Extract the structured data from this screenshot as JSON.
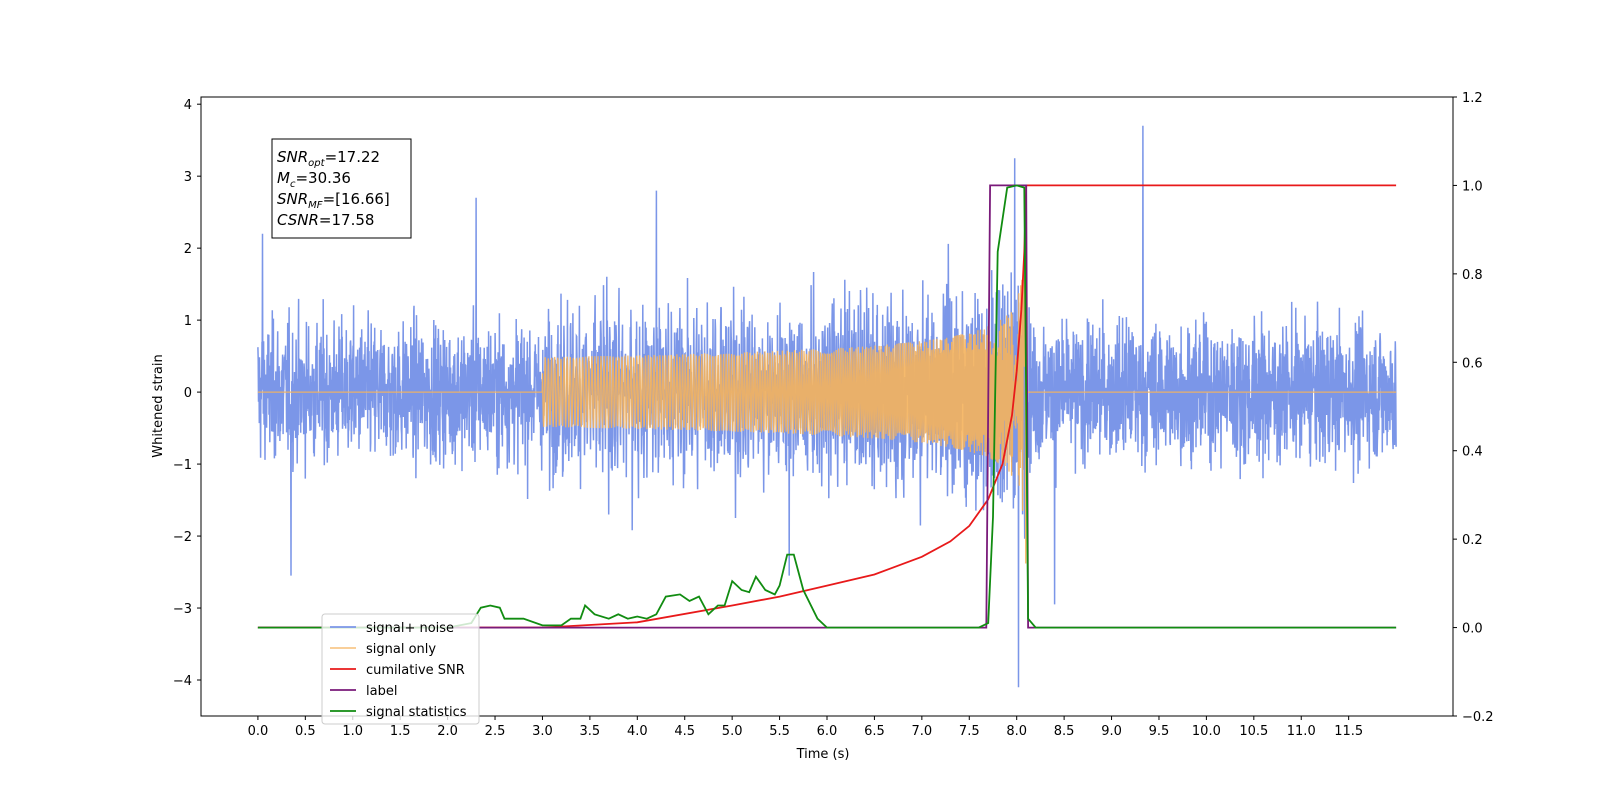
{
  "chart_data": {
    "type": "line",
    "xlabel": "Time (s)",
    "ylabel": "Whitened strain",
    "xlim": [
      -0.6,
      12.6
    ],
    "ylim": [
      -4.5,
      4.1
    ],
    "y2lim": [
      -0.2,
      1.2
    ],
    "x_ticks": [
      "0.0",
      "0.5",
      "1.0",
      "1.5",
      "2.0",
      "2.5",
      "3.0",
      "3.5",
      "4.0",
      "4.5",
      "5.0",
      "5.5",
      "6.0",
      "6.5",
      "7.0",
      "7.5",
      "8.0",
      "8.5",
      "9.0",
      "9.5",
      "10.0",
      "10.5",
      "11.0",
      "11.5"
    ],
    "y_ticks": [
      "−4",
      "−3",
      "−2",
      "−1",
      "0",
      "1",
      "2",
      "3",
      "4"
    ],
    "y2_ticks": [
      "−0.2",
      "0.0",
      "0.2",
      "0.4",
      "0.6",
      "0.8",
      "1.0",
      "1.2"
    ],
    "grid": false,
    "legend_position": "lower-left",
    "annotation": {
      "lines": [
        {
          "sym": "SNR",
          "sub": "opt",
          "val": "=17.22"
        },
        {
          "sym": "M",
          "sub": "c",
          "val": "=30.36"
        },
        {
          "sym": "SNR",
          "sub": "MF",
          "val": "=[16.66]"
        },
        {
          "sym": "CSNR",
          "sub": "",
          "val": "=17.58"
        }
      ]
    },
    "colors": {
      "noise": "#7b96e8",
      "signal": "#f5b25c",
      "csnr": "#e8191a",
      "label": "#7a1a7a",
      "stats": "#118c11"
    },
    "series": [
      {
        "name": "signal+ noise",
        "axis": "left",
        "description_range": [
          0.0,
          12.0
        ],
        "amplitude_typical": 1.3,
        "peaks": [
          [
            0.05,
            2.2
          ],
          [
            0.35,
            -2.55
          ],
          [
            2.3,
            2.7
          ],
          [
            4.2,
            2.8
          ],
          [
            5.6,
            -2.55
          ],
          [
            7.98,
            3.25
          ],
          [
            8.02,
            -4.1
          ],
          [
            8.4,
            -2.95
          ],
          [
            9.33,
            3.7
          ]
        ]
      },
      {
        "name": "signal only",
        "axis": "left",
        "chirp_start": 3.0,
        "merger": 8.1,
        "peak_amplitude": 2.9
      },
      {
        "name": "cumilative SNR",
        "axis": "right",
        "x": [
          3.0,
          4.0,
          5.0,
          5.5,
          6.0,
          6.5,
          7.0,
          7.3,
          7.5,
          7.7,
          7.85,
          7.95,
          8.0,
          8.05,
          8.08,
          8.1,
          9.0,
          10.0,
          11.0,
          12.0
        ],
        "y": [
          0.0,
          0.012,
          0.05,
          0.07,
          0.095,
          0.12,
          0.16,
          0.195,
          0.23,
          0.29,
          0.37,
          0.48,
          0.58,
          0.72,
          0.85,
          1.0,
          1.0,
          1.0,
          1.0,
          1.0
        ]
      },
      {
        "name": "label",
        "axis": "right",
        "x": [
          0.0,
          7.68,
          7.72,
          8.1,
          8.12,
          12.0
        ],
        "y": [
          0.0,
          0.0,
          1.0,
          1.0,
          0.0,
          0.0
        ]
      },
      {
        "name": "signal statistics",
        "axis": "right",
        "x": [
          0.0,
          2.0,
          2.25,
          2.35,
          2.45,
          2.55,
          2.6,
          2.8,
          3.0,
          3.2,
          3.3,
          3.4,
          3.45,
          3.55,
          3.7,
          3.8,
          3.9,
          4.0,
          4.1,
          4.2,
          4.3,
          4.45,
          4.55,
          4.65,
          4.75,
          4.85,
          4.92,
          5.0,
          5.1,
          5.18,
          5.25,
          5.35,
          5.45,
          5.5,
          5.58,
          5.65,
          5.75,
          5.9,
          6.0,
          7.6,
          7.7,
          7.75,
          7.8,
          7.9,
          8.0,
          8.08,
          8.12,
          8.2,
          12.0
        ],
        "y": [
          0.0,
          0.0,
          0.01,
          0.045,
          0.05,
          0.045,
          0.02,
          0.02,
          0.005,
          0.005,
          0.02,
          0.02,
          0.05,
          0.03,
          0.02,
          0.03,
          0.02,
          0.025,
          0.02,
          0.03,
          0.07,
          0.075,
          0.06,
          0.07,
          0.03,
          0.05,
          0.05,
          0.105,
          0.085,
          0.08,
          0.115,
          0.085,
          0.075,
          0.095,
          0.165,
          0.165,
          0.085,
          0.02,
          0.0,
          0.0,
          0.01,
          0.25,
          0.85,
          0.995,
          1.0,
          0.995,
          0.02,
          0.0,
          0.0
        ]
      }
    ]
  }
}
